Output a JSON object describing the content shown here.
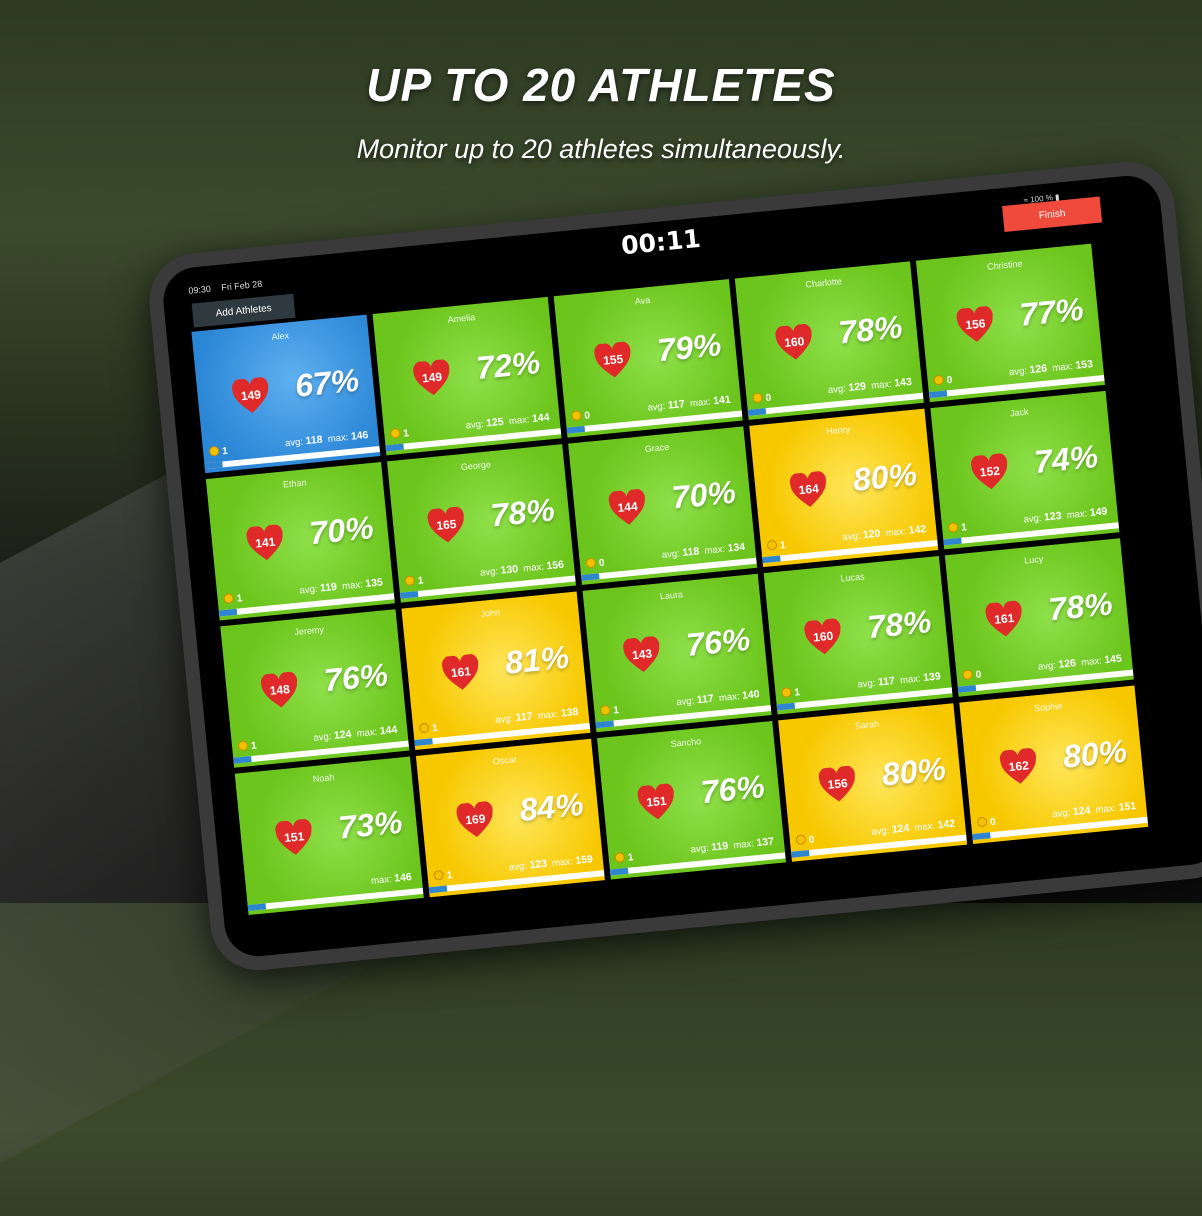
{
  "hero": {
    "title": "UP TO 20 ATHLETES",
    "subtitle": "Monitor up to 20 athletes simultaneously."
  },
  "status": {
    "time": "09:30",
    "date": "Fri Feb 28",
    "battery": "100 %"
  },
  "timer": "00:11",
  "finish_label": "Finish",
  "add_label": "Add Athletes",
  "colors": {
    "green": "#6cc51c",
    "yellow": "#f7c800",
    "blue": "#2b86d6",
    "heart": "#e02a2a",
    "finish": "#f04a3c"
  },
  "athletes": [
    {
      "name": "Alex",
      "hr": "149",
      "pct": "67%",
      "avg": "118",
      "max": "146",
      "laps": "1",
      "zone": "blue"
    },
    {
      "name": "Amelia",
      "hr": "149",
      "pct": "72%",
      "avg": "125",
      "max": "144",
      "laps": "1",
      "zone": "green"
    },
    {
      "name": "Ava",
      "hr": "155",
      "pct": "79%",
      "avg": "117",
      "max": "141",
      "laps": "0",
      "zone": "green"
    },
    {
      "name": "Charlotte",
      "hr": "160",
      "pct": "78%",
      "avg": "129",
      "max": "143",
      "laps": "0",
      "zone": "green"
    },
    {
      "name": "Christine",
      "hr": "156",
      "pct": "77%",
      "avg": "126",
      "max": "153",
      "laps": "0",
      "zone": "green"
    },
    {
      "name": "Ethan",
      "hr": "141",
      "pct": "70%",
      "avg": "119",
      "max": "135",
      "laps": "1",
      "zone": "green"
    },
    {
      "name": "George",
      "hr": "165",
      "pct": "78%",
      "avg": "130",
      "max": "156",
      "laps": "1",
      "zone": "green"
    },
    {
      "name": "Grace",
      "hr": "144",
      "pct": "70%",
      "avg": "118",
      "max": "134",
      "laps": "0",
      "zone": "green"
    },
    {
      "name": "Henry",
      "hr": "164",
      "pct": "80%",
      "avg": "120",
      "max": "142",
      "laps": "1",
      "zone": "yellow"
    },
    {
      "name": "Jack",
      "hr": "152",
      "pct": "74%",
      "avg": "123",
      "max": "149",
      "laps": "1",
      "zone": "green"
    },
    {
      "name": "Jeremy",
      "hr": "148",
      "pct": "76%",
      "avg": "124",
      "max": "144",
      "laps": "1",
      "zone": "green"
    },
    {
      "name": "John",
      "hr": "161",
      "pct": "81%",
      "avg": "117",
      "max": "138",
      "laps": "1",
      "zone": "yellow"
    },
    {
      "name": "Laura",
      "hr": "143",
      "pct": "76%",
      "avg": "117",
      "max": "140",
      "laps": "1",
      "zone": "green"
    },
    {
      "name": "Lucas",
      "hr": "160",
      "pct": "78%",
      "avg": "117",
      "max": "139",
      "laps": "1",
      "zone": "green"
    },
    {
      "name": "Lucy",
      "hr": "161",
      "pct": "78%",
      "avg": "126",
      "max": "145",
      "laps": "0",
      "zone": "green"
    },
    {
      "name": "Noah",
      "hr": "151",
      "pct": "73%",
      "max": "146",
      "zone": "green"
    },
    {
      "name": "Oscar",
      "hr": "169",
      "pct": "84%",
      "avg": "123",
      "max": "159",
      "laps": "1",
      "zone": "yellow"
    },
    {
      "name": "Sancho",
      "hr": "151",
      "pct": "76%",
      "avg": "119",
      "max": "137",
      "laps": "1",
      "zone": "green"
    },
    {
      "name": "Sarah",
      "hr": "156",
      "pct": "80%",
      "avg": "124",
      "max": "142",
      "laps": "0",
      "zone": "yellow"
    },
    {
      "name": "Sophie",
      "hr": "162",
      "pct": "80%",
      "avg": "124",
      "max": "151",
      "laps": "0",
      "zone": "yellow"
    }
  ]
}
